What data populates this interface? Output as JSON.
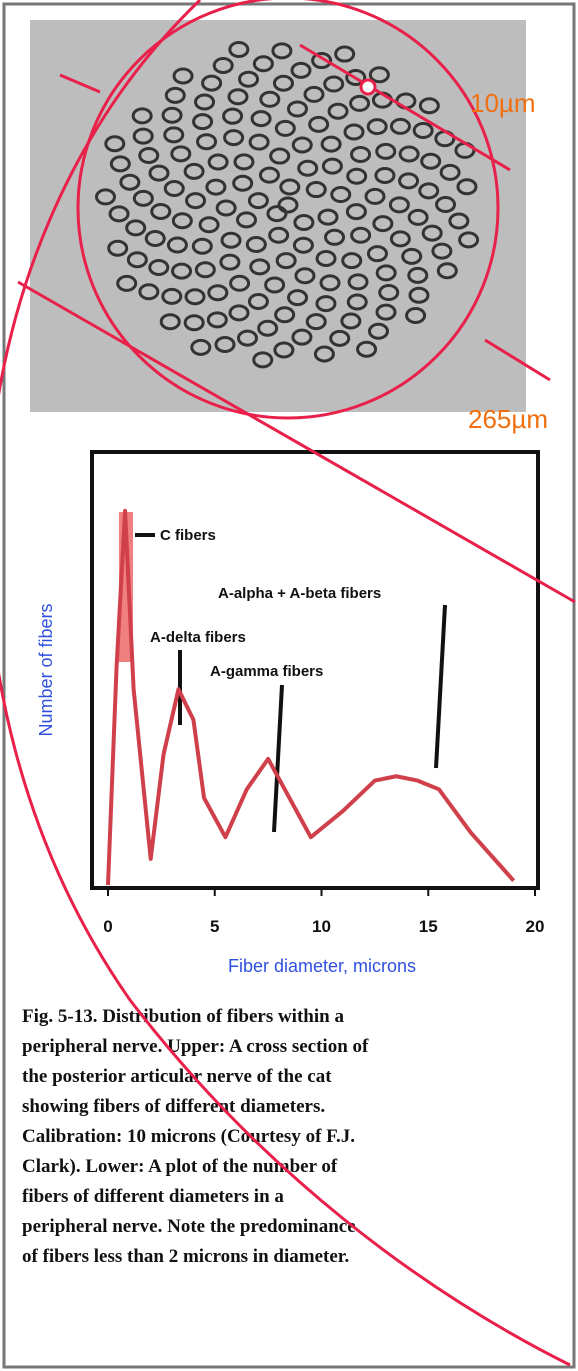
{
  "micrograph": {
    "scale_small": "10µm",
    "scale_large": "265µm"
  },
  "chart_data": {
    "type": "line",
    "xlabel": "Fiber diameter, microns",
    "ylabel": "Number of fibers",
    "x": [
      0,
      0.4,
      0.8,
      1.2,
      2,
      2.6,
      3.3,
      4,
      4.5,
      5.5,
      6.5,
      7.5,
      8.5,
      9.5,
      11,
      12.5,
      13.5,
      14.5,
      15.5,
      17,
      19
    ],
    "values": [
      0,
      50,
      86,
      45,
      6,
      30,
      45,
      38,
      20,
      11,
      22,
      29,
      20,
      11,
      17,
      24,
      25,
      24,
      22,
      12,
      1
    ],
    "color": "#d0404a",
    "xlim": [
      0,
      20
    ],
    "xticks": [
      0,
      5,
      10,
      15,
      20
    ],
    "ylim": [
      0,
      100
    ],
    "annotations": [
      "C fibers",
      "A-alpha + A-beta fibers",
      "A-delta fibers",
      "A-gamma fibers"
    ]
  },
  "caption": [
    "Fig. 5-13. Distribution of fibers within a",
    "peripheral nerve. Upper: A cross section of",
    "the posterior articular nerve of the cat",
    "showing fibers of different diameters.",
    "Calibration: 10 microns (Courtesy of F.J.",
    "Clark). Lower: A plot of the number of",
    "fibers of different diameters in a",
    "peripheral nerve. Note the predominance",
    "of fibers less than 2 microns in diameter."
  ]
}
